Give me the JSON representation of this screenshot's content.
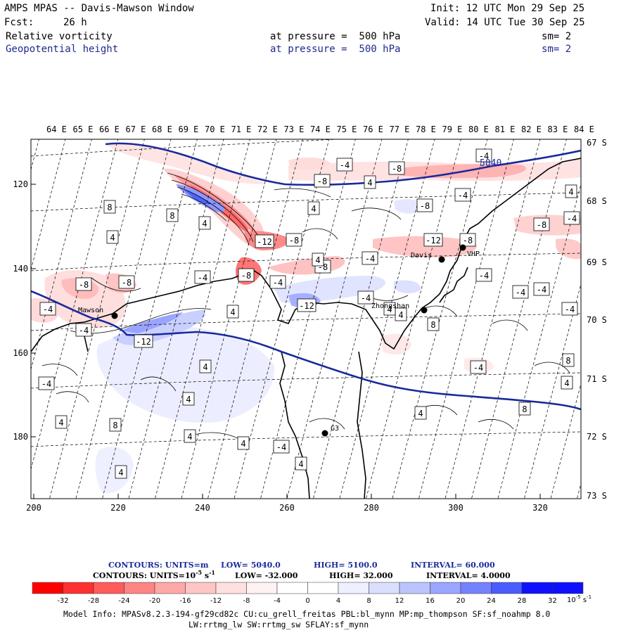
{
  "header": {
    "title": "AMPS MPAS -- Davis-Mawson Window",
    "init": "Init: 12 UTC Mon 29 Sep 25",
    "forecast_label": "Fcst:",
    "forecast_value": "26 h",
    "valid": "Valid: 14 UTC Tue 30 Sep 25",
    "field1_name": "Relative vorticity",
    "field1_pressure": "at pressure =  500 hPa",
    "field1_sm": "sm= 2",
    "field2_name": "Geopotential height",
    "field2_pressure": "at pressure =  500 hPa",
    "field2_sm": "sm= 2"
  },
  "map": {
    "lon_labels": [
      "64 E",
      "65 E",
      "66 E",
      "67 E",
      "68 E",
      "69 E",
      "70 E",
      "71 E",
      "72 E",
      "73 E",
      "74 E",
      "75 E",
      "76 E",
      "77 E",
      "78 E",
      "79 E",
      "80 E",
      "81 E",
      "82 E",
      "83 E",
      "84 E"
    ],
    "lat_labels": [
      "67 S",
      "68 S",
      "69 S",
      "70 S",
      "71 S",
      "72 S",
      "73 S"
    ],
    "x_ticks": [
      "200",
      "220",
      "240",
      "260",
      "280",
      "300",
      "320"
    ],
    "y_ticks": [
      "120",
      "140",
      "160",
      "180"
    ],
    "places": {
      "mawson": "Mawson",
      "davis": "Davis",
      "vhp": "VHP",
      "zhongshan": "Zhongshan",
      "g3": "G3"
    },
    "height_contour_label": "5040",
    "contour_labels": [
      {
        "v": "-4"
      },
      {
        "v": "-8"
      },
      {
        "v": "-4"
      },
      {
        "v": "-8"
      },
      {
        "v": "4"
      },
      {
        "v": "4"
      },
      {
        "v": "-4"
      },
      {
        "v": "-8"
      },
      {
        "v": "4"
      },
      {
        "v": "8"
      },
      {
        "v": "8"
      },
      {
        "v": "4"
      },
      {
        "v": "4"
      },
      {
        "v": "-4"
      },
      {
        "v": "-8"
      },
      {
        "v": "-12"
      },
      {
        "v": "-8"
      },
      {
        "v": "-8"
      },
      {
        "v": "-12"
      },
      {
        "v": "-8"
      },
      {
        "v": "-4"
      },
      {
        "v": "-8"
      },
      {
        "v": "-4"
      },
      {
        "v": "-4"
      },
      {
        "v": "-4"
      },
      {
        "v": "-8"
      },
      {
        "v": "-8"
      },
      {
        "v": "-4"
      },
      {
        "v": "-4"
      },
      {
        "v": "-12"
      },
      {
        "v": "4"
      },
      {
        "v": "-12"
      },
      {
        "v": "-4"
      },
      {
        "v": "4"
      },
      {
        "v": "-4"
      },
      {
        "v": "-4"
      },
      {
        "v": "4"
      },
      {
        "v": "4"
      },
      {
        "v": "8"
      },
      {
        "v": "-4"
      },
      {
        "v": "8"
      },
      {
        "v": "4"
      },
      {
        "v": "-4"
      },
      {
        "v": "4"
      },
      {
        "v": "8"
      },
      {
        "v": "4"
      },
      {
        "v": "4"
      },
      {
        "v": "4"
      },
      {
        "v": "-4"
      },
      {
        "v": "4"
      },
      {
        "v": "4"
      },
      {
        "v": "-4"
      },
      {
        "v": "4"
      },
      {
        "v": "8"
      },
      {
        "v": "4"
      }
    ]
  },
  "contour_info": {
    "line1_label": "CONTOURS:  UNITS=m",
    "line1_low": "LOW=  5040.0",
    "line1_high": "HIGH=  5100.0",
    "line1_interval": "INTERVAL=   60.000",
    "line2_label": "CONTOURS:  UNITS=10",
    "line2_units_exp": "-5",
    "line2_units_tail": " s",
    "line2_units_exp2": "-1",
    "line2_low": "LOW=  -32.000",
    "line2_high": "HIGH=  32.000",
    "line2_interval": "INTERVAL=   4.0000"
  },
  "colorbar": {
    "ticks": [
      "-32",
      "-28",
      "-24",
      "-20",
      "-16",
      "-12",
      "-8",
      "-4",
      "0",
      "4",
      "8",
      "12",
      "16",
      "20",
      "24",
      "28",
      "32"
    ],
    "colors": [
      "#ff0000",
      "#ff3030",
      "#ff5c5c",
      "#ff8484",
      "#ffa8a8",
      "#ffc6c6",
      "#ffe0e0",
      "#fff2f2",
      "#ffffff",
      "#ffffff",
      "#eef0ff",
      "#dadfff",
      "#bcc4ff",
      "#9aa6ff",
      "#7482ff",
      "#4a5bff",
      "#1010ff"
    ],
    "unit_base": "10",
    "unit_exp": "-5",
    "unit_s": "s",
    "unit_exp2": "-1"
  },
  "footer": {
    "line1": "Model Info: MPASv8.2.3-194-gf29cd82c CU:cu_grell_freitas PBL:bl_mynn MP:mp_thompson SF:sf_noahmp 8.0",
    "line2": "LW:rrtmg_lw SW:rrtmg_sw SFLAY:sf_mynn"
  },
  "colors": {
    "height_contour": "#1a2a9a",
    "header_blue": "#1f2a8c",
    "coast": "#000000"
  }
}
